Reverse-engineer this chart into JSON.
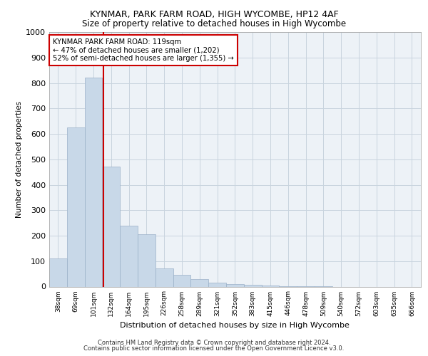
{
  "title1": "KYNMAR, PARK FARM ROAD, HIGH WYCOMBE, HP12 4AF",
  "title2": "Size of property relative to detached houses in High Wycombe",
  "xlabel": "Distribution of detached houses by size in High Wycombe",
  "ylabel": "Number of detached properties",
  "footer1": "Contains HM Land Registry data © Crown copyright and database right 2024.",
  "footer2": "Contains public sector information licensed under the Open Government Licence v3.0.",
  "annotation_line1": "KYNMAR PARK FARM ROAD: 119sqm",
  "annotation_line2": "← 47% of detached houses are smaller (1,202)",
  "annotation_line3": "52% of semi-detached houses are larger (1,355) →",
  "bar_color": "#c8d8e8",
  "bar_edge_color": "#9ab0c8",
  "grid_color": "#c8d4de",
  "bg_color": "#edf2f7",
  "vline_color": "#cc0000",
  "annotation_box_edge": "#cc0000",
  "ylim": [
    0,
    1000
  ],
  "yticks": [
    0,
    100,
    200,
    300,
    400,
    500,
    600,
    700,
    800,
    900,
    1000
  ],
  "bins": [
    "38sqm",
    "69sqm",
    "101sqm",
    "132sqm",
    "164sqm",
    "195sqm",
    "226sqm",
    "258sqm",
    "289sqm",
    "321sqm",
    "352sqm",
    "383sqm",
    "415sqm",
    "446sqm",
    "478sqm",
    "509sqm",
    "540sqm",
    "572sqm",
    "603sqm",
    "635sqm",
    "666sqm"
  ],
  "values": [
    110,
    625,
    820,
    470,
    240,
    205,
    70,
    45,
    30,
    15,
    10,
    8,
    5,
    2,
    1,
    1,
    0,
    0,
    0,
    0,
    0
  ],
  "vline_x_index": 2.58
}
